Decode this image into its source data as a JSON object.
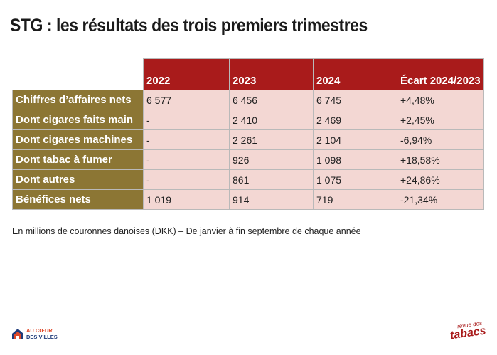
{
  "title": "STG : les résultats des trois premiers trimestres",
  "table": {
    "headers": [
      "2022",
      "2023",
      "2024",
      "Écart 2024/2023"
    ],
    "rows": [
      {
        "label": "Chiffres d’affaires nets",
        "cells": [
          "6 577",
          "6 456",
          "6 745",
          "+4,48%"
        ]
      },
      {
        "label": "Dont cigares faits main",
        "cells": [
          "-",
          "2 410",
          "2 469",
          "+2,45%"
        ]
      },
      {
        "label": "Dont cigares machines",
        "cells": [
          "-",
          "2 261",
          "2 104",
          "-6,94%"
        ]
      },
      {
        "label": "Dont tabac à fumer",
        "cells": [
          "-",
          "926",
          "1 098",
          "+18,58%"
        ]
      },
      {
        "label": "Dont autres",
        "cells": [
          "-",
          "861",
          "1 075",
          "+24,86%"
        ]
      },
      {
        "label": "Bénéfices nets",
        "cells": [
          "1 019",
          "914",
          "719",
          "-21,34%"
        ]
      }
    ]
  },
  "note": "En millions de couronnes danoises (DKK) – De janvier à fin septembre de chaque année",
  "logos": {
    "left_line1": "AU CŒUR",
    "left_line2": "DES VILLES",
    "right_small": "revue des",
    "right_big": "tabacs"
  },
  "colors": {
    "header_bg": "#a91b1b",
    "label_bg": "#8c7634",
    "cell_bg": "#f3d7d3"
  }
}
